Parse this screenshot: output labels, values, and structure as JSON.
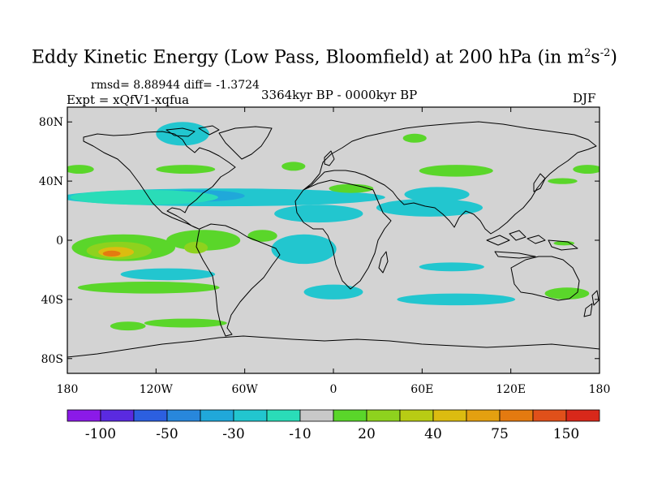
{
  "title": {
    "text": "Eddy Kinetic Energy (Low Pass, Bloomfield) at 200 hPa (in m",
    "sup1": "2",
    "mid": "s",
    "sup2": "-2",
    "end": ")"
  },
  "stats": "rmsd= 8.88944 diff= -1.3724",
  "expt": "Expt = xQfV1-xqfua",
  "period": "3364kyr BP - 0000kyr BP",
  "season": "DJF",
  "map": {
    "background_color": "#d3d3d3",
    "lat_ticks": [
      {
        "value": 80,
        "label": "80N"
      },
      {
        "value": 40,
        "label": "40N"
      },
      {
        "value": 0,
        "label": "0"
      },
      {
        "value": -40,
        "label": "40S"
      },
      {
        "value": -80,
        "label": "80S"
      }
    ],
    "lon_ticks": [
      {
        "value": -180,
        "label": "180"
      },
      {
        "value": -120,
        "label": "120W"
      },
      {
        "value": -60,
        "label": "60W"
      },
      {
        "value": 0,
        "label": "0"
      },
      {
        "value": 60,
        "label": "60E"
      },
      {
        "value": 120,
        "label": "120E"
      },
      {
        "value": 180,
        "label": "180"
      }
    ]
  },
  "colorbar": {
    "colors": [
      "#8b1ae8",
      "#5a2ae0",
      "#2c5fe0",
      "#2887dc",
      "#20a8da",
      "#22c6cf",
      "#2adcb8",
      "#c8c8c8",
      "#5ad62a",
      "#8ed21e",
      "#b8cc14",
      "#dcbc10",
      "#e4a010",
      "#e47a10",
      "#e0501a",
      "#d8281a"
    ],
    "labels": [
      {
        "boundary": 1,
        "text": "-100"
      },
      {
        "boundary": 3,
        "text": "-50"
      },
      {
        "boundary": 5,
        "text": "-30"
      },
      {
        "boundary": 7,
        "text": "-10"
      },
      {
        "boundary": 9,
        "text": "20"
      },
      {
        "boundary": 11,
        "text": "40"
      },
      {
        "boundary": 13,
        "text": "75"
      },
      {
        "boundary": 15,
        "text": "150"
      }
    ]
  },
  "anomaly_regions": [
    {
      "color": "#22c6cf",
      "lon": -75,
      "lat": 29,
      "rlon": 110,
      "rlat": 6
    },
    {
      "color": "#20a8da",
      "lon": -95,
      "lat": 30,
      "rlon": 35,
      "rlat": 4
    },
    {
      "color": "#2adcb8",
      "lon": -128,
      "lat": 29,
      "rlon": 50,
      "rlat": 5
    },
    {
      "color": "#22c6cf",
      "lon": -102,
      "lat": 72,
      "rlon": 18,
      "rlat": 8
    },
    {
      "color": "#22c6cf",
      "lon": -10,
      "lat": 18,
      "rlon": 30,
      "rlat": 6
    },
    {
      "color": "#22c6cf",
      "lon": -20,
      "lat": -6,
      "rlon": 22,
      "rlat": 10
    },
    {
      "color": "#22c6cf",
      "lon": 65,
      "lat": 22,
      "rlon": 36,
      "rlat": 6
    },
    {
      "color": "#22c6cf",
      "lon": 70,
      "lat": 31,
      "rlon": 22,
      "rlat": 5
    },
    {
      "color": "#22c6cf",
      "lon": 0,
      "lat": -35,
      "rlon": 20,
      "rlat": 5
    },
    {
      "color": "#22c6cf",
      "lon": -112,
      "lat": -23,
      "rlon": 32,
      "rlat": 4
    },
    {
      "color": "#22c6cf",
      "lon": 83,
      "lat": -40,
      "rlon": 40,
      "rlat": 4
    },
    {
      "color": "#22c6cf",
      "lon": 80,
      "lat": -18,
      "rlon": 22,
      "rlat": 3
    },
    {
      "color": "#5ad62a",
      "lon": -100,
      "lat": 48,
      "rlon": 20,
      "rlat": 3
    },
    {
      "color": "#5ad62a",
      "lon": -27,
      "lat": 50,
      "rlon": 8,
      "rlat": 3
    },
    {
      "color": "#5ad62a",
      "lon": 12,
      "lat": 35,
      "rlon": 15,
      "rlat": 3
    },
    {
      "color": "#5ad62a",
      "lon": 55,
      "lat": 69,
      "rlon": 8,
      "rlat": 3
    },
    {
      "color": "#5ad62a",
      "lon": 83,
      "lat": 47,
      "rlon": 25,
      "rlat": 4
    },
    {
      "color": "#5ad62a",
      "lon": 155,
      "lat": 40,
      "rlon": 10,
      "rlat": 2
    },
    {
      "color": "#5ad62a",
      "lon": 172,
      "lat": 48,
      "rlon": 10,
      "rlat": 3
    },
    {
      "color": "#5ad62a",
      "lon": -172,
      "lat": 48,
      "rlon": 10,
      "rlat": 3
    },
    {
      "color": "#5ad62a",
      "lon": -142,
      "lat": -5,
      "rlon": 35,
      "rlat": 9
    },
    {
      "color": "#8ed21e",
      "lon": -145,
      "lat": -7,
      "rlon": 22,
      "rlat": 6
    },
    {
      "color": "#dcbc10",
      "lon": -147,
      "lat": -8,
      "rlon": 12,
      "rlat": 3.5
    },
    {
      "color": "#e47a10",
      "lon": -150,
      "lat": -9,
      "rlon": 6,
      "rlat": 2
    },
    {
      "color": "#5ad62a",
      "lon": -88,
      "lat": 0,
      "rlon": 25,
      "rlat": 7
    },
    {
      "color": "#8ed21e",
      "lon": -93,
      "lat": -5,
      "rlon": 8,
      "rlat": 4
    },
    {
      "color": "#5ad62a",
      "lon": -48,
      "lat": 3,
      "rlon": 10,
      "rlat": 4
    },
    {
      "color": "#5ad62a",
      "lon": -125,
      "lat": -32,
      "rlon": 48,
      "rlat": 4
    },
    {
      "color": "#5ad62a",
      "lon": -139,
      "lat": -58,
      "rlon": 12,
      "rlat": 3
    },
    {
      "color": "#5ad62a",
      "lon": -100,
      "lat": -56,
      "rlon": 28,
      "rlat": 3
    },
    {
      "color": "#5ad62a",
      "lon": 158,
      "lat": -36,
      "rlon": 15,
      "rlat": 4
    },
    {
      "color": "#5ad62a",
      "lon": 156,
      "lat": -2,
      "rlon": 7,
      "rlat": 1.5
    }
  ]
}
